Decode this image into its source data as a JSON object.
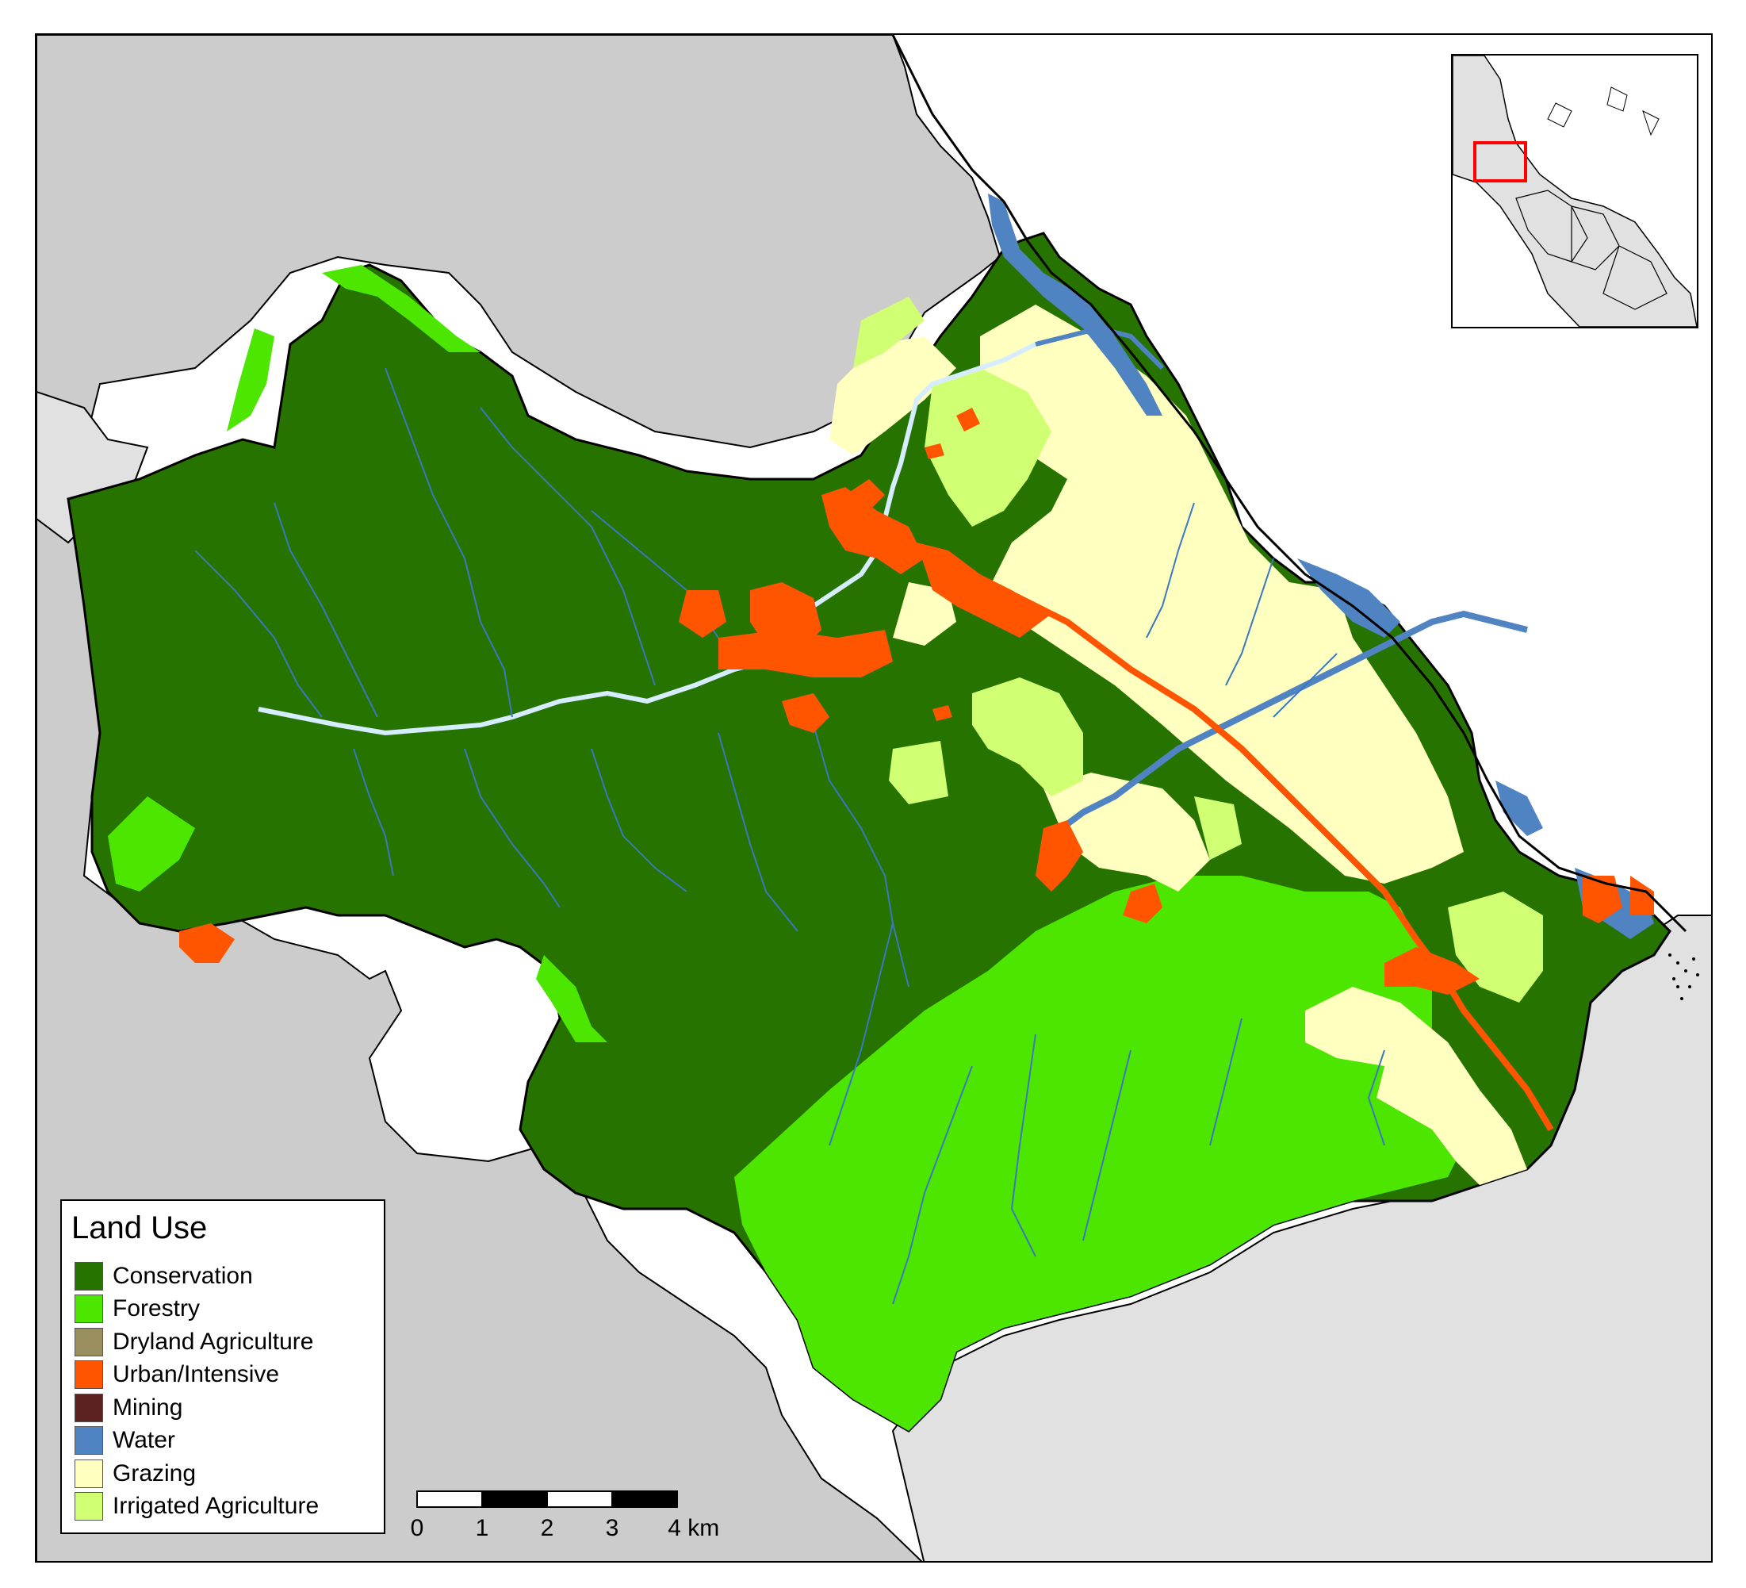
{
  "legend": {
    "title": "Land Use",
    "items": [
      {
        "label": "Conservation",
        "color": "#267300"
      },
      {
        "label": "Forestry",
        "color": "#4ce600"
      },
      {
        "label": "Dryland Agriculture",
        "color": "#998f5e"
      },
      {
        "label": "Urban/Intensive",
        "color": "#ff5500"
      },
      {
        "label": "Mining",
        "color": "#5c2121"
      },
      {
        "label": "Water",
        "color": "#5083c2"
      },
      {
        "label": "Grazing",
        "color": "#ffffc0"
      },
      {
        "label": "Irrigated Agriculture",
        "color": "#d1ff73"
      }
    ]
  },
  "scalebar": {
    "ticks": [
      "0",
      "1",
      "2",
      "3",
      "4 km"
    ]
  },
  "colors": {
    "outside_land_dark": "#cccccc",
    "outside_land_light": "#e1e1e1",
    "sea": "#ffffff",
    "river": "#d6ecff",
    "stream": "#3a78c0",
    "inset_highlight": "#ff0000"
  },
  "icons": {
    "inset": "locator-map-icon",
    "scale": "scale-bar-icon"
  }
}
